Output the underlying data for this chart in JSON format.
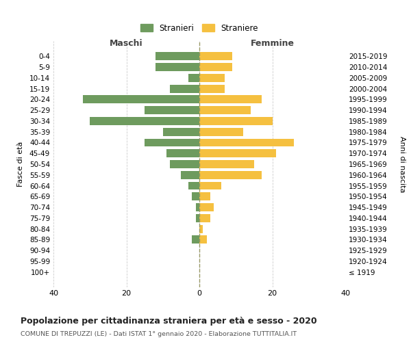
{
  "age_groups": [
    "0-4",
    "5-9",
    "10-14",
    "15-19",
    "20-24",
    "25-29",
    "30-34",
    "35-39",
    "40-44",
    "45-49",
    "50-54",
    "55-59",
    "60-64",
    "65-69",
    "70-74",
    "75-79",
    "80-84",
    "85-89",
    "90-94",
    "95-99",
    "100+"
  ],
  "birth_years": [
    "2015-2019",
    "2010-2014",
    "2005-2009",
    "2000-2004",
    "1995-1999",
    "1990-1994",
    "1985-1989",
    "1980-1984",
    "1975-1979",
    "1970-1974",
    "1965-1969",
    "1960-1964",
    "1955-1959",
    "1950-1954",
    "1945-1949",
    "1940-1944",
    "1935-1939",
    "1930-1934",
    "1925-1929",
    "1920-1924",
    "≤ 1919"
  ],
  "maschi": [
    12,
    12,
    3,
    8,
    32,
    15,
    30,
    10,
    15,
    9,
    8,
    5,
    3,
    2,
    1,
    1,
    0,
    2,
    0,
    0,
    0
  ],
  "femmine": [
    9,
    9,
    7,
    7,
    17,
    14,
    20,
    12,
    26,
    21,
    15,
    17,
    6,
    3,
    4,
    3,
    1,
    2,
    0,
    0,
    0
  ],
  "maschi_color": "#6e9b5e",
  "femmine_color": "#f5c040",
  "bg_color": "#ffffff",
  "grid_color": "#cccccc",
  "title": "Popolazione per cittadinanza straniera per età e sesso - 2020",
  "subtitle": "COMUNE DI TREPUZZI (LE) - Dati ISTAT 1° gennaio 2020 - Elaborazione TUTTITALIA.IT",
  "xlabel_maschi": "Maschi",
  "xlabel_femmine": "Femmine",
  "ylabel": "Fasce di età",
  "ylabel_right": "Anni di nascita",
  "legend_maschi": "Stranieri",
  "legend_femmine": "Straniere",
  "xlim": 40
}
